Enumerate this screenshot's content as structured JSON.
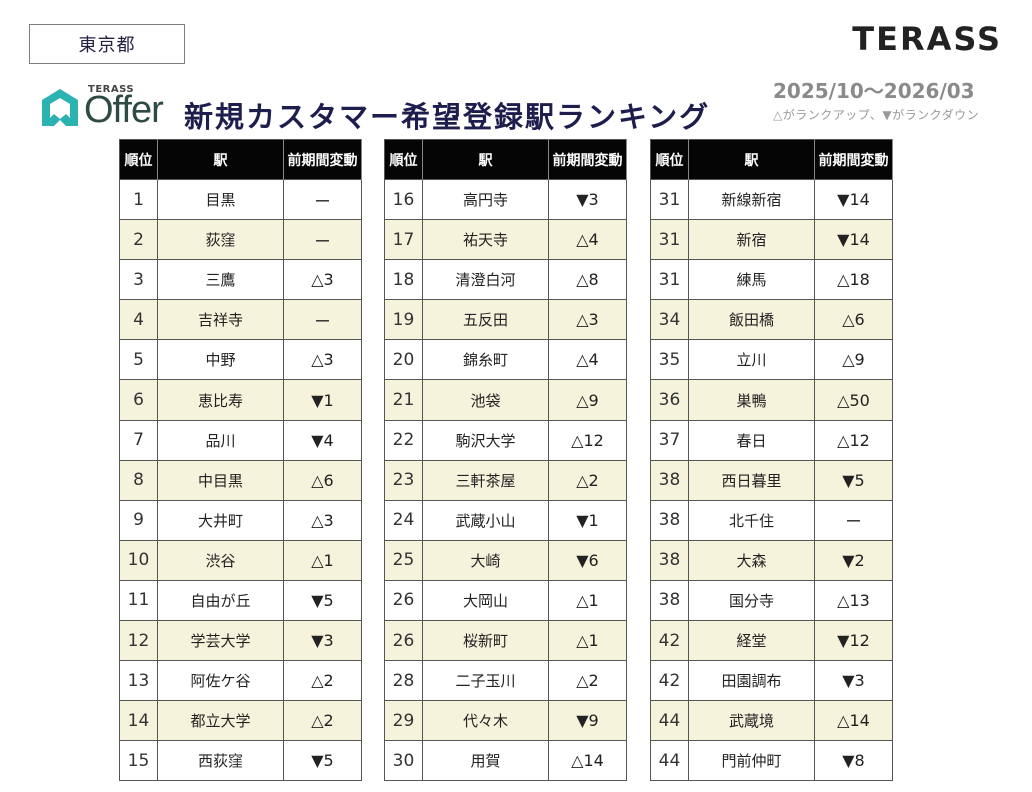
{
  "region": "東京都",
  "brand": "TERASS",
  "logo": {
    "small": "TERASS",
    "main": "Offer"
  },
  "title": "新規カスタマー希望登録駅ランキング",
  "period": "2025/10～2026/03",
  "legend_note": "△がランクアップ、▼がランクダウン",
  "colors": {
    "header_bg": "#050505",
    "alt_row": "#f6f3dc",
    "title": "#1e1e4e",
    "logo_teal": "#2bb3b1"
  },
  "headers": [
    "順位",
    "駅",
    "前期間変動"
  ],
  "tables": [
    {
      "rows": [
        {
          "rank": "1",
          "station": "目黒",
          "change": "ー"
        },
        {
          "rank": "2",
          "station": "荻窪",
          "change": "ー"
        },
        {
          "rank": "3",
          "station": "三鷹",
          "change": "△3"
        },
        {
          "rank": "4",
          "station": "吉祥寺",
          "change": "ー"
        },
        {
          "rank": "5",
          "station": "中野",
          "change": "△3"
        },
        {
          "rank": "6",
          "station": "恵比寿",
          "change": "▼1"
        },
        {
          "rank": "7",
          "station": "品川",
          "change": "▼4"
        },
        {
          "rank": "8",
          "station": "中目黒",
          "change": "△6"
        },
        {
          "rank": "9",
          "station": "大井町",
          "change": "△3"
        },
        {
          "rank": "10",
          "station": "渋谷",
          "change": "△1"
        },
        {
          "rank": "11",
          "station": "自由が丘",
          "change": "▼5"
        },
        {
          "rank": "12",
          "station": "学芸大学",
          "change": "▼3"
        },
        {
          "rank": "13",
          "station": "阿佐ケ谷",
          "change": "△2"
        },
        {
          "rank": "14",
          "station": "都立大学",
          "change": "△2"
        },
        {
          "rank": "15",
          "station": "西荻窪",
          "change": "▼5"
        }
      ]
    },
    {
      "rows": [
        {
          "rank": "16",
          "station": "高円寺",
          "change": "▼3"
        },
        {
          "rank": "17",
          "station": "祐天寺",
          "change": "△4"
        },
        {
          "rank": "18",
          "station": "清澄白河",
          "change": "△8"
        },
        {
          "rank": "19",
          "station": "五反田",
          "change": "△3"
        },
        {
          "rank": "20",
          "station": "錦糸町",
          "change": "△4"
        },
        {
          "rank": "21",
          "station": "池袋",
          "change": "△9"
        },
        {
          "rank": "22",
          "station": "駒沢大学",
          "change": "△12"
        },
        {
          "rank": "23",
          "station": "三軒茶屋",
          "change": "△2"
        },
        {
          "rank": "24",
          "station": "武蔵小山",
          "change": "▼1"
        },
        {
          "rank": "25",
          "station": "大崎",
          "change": "▼6"
        },
        {
          "rank": "26",
          "station": "大岡山",
          "change": "△1"
        },
        {
          "rank": "26",
          "station": "桜新町",
          "change": "△1"
        },
        {
          "rank": "28",
          "station": "二子玉川",
          "change": "△2"
        },
        {
          "rank": "29",
          "station": "代々木",
          "change": "▼9"
        },
        {
          "rank": "30",
          "station": "用賀",
          "change": "△14"
        }
      ]
    },
    {
      "rows": [
        {
          "rank": "31",
          "station": "新線新宿",
          "change": "▼14"
        },
        {
          "rank": "31",
          "station": "新宿",
          "change": "▼14"
        },
        {
          "rank": "31",
          "station": "練馬",
          "change": "△18"
        },
        {
          "rank": "34",
          "station": "飯田橋",
          "change": "△6"
        },
        {
          "rank": "35",
          "station": "立川",
          "change": "△9"
        },
        {
          "rank": "36",
          "station": "巣鴨",
          "change": "△50"
        },
        {
          "rank": "37",
          "station": "春日",
          "change": "△12"
        },
        {
          "rank": "38",
          "station": "西日暮里",
          "change": "▼5"
        },
        {
          "rank": "38",
          "station": "北千住",
          "change": "ー"
        },
        {
          "rank": "38",
          "station": "大森",
          "change": "▼2"
        },
        {
          "rank": "38",
          "station": "国分寺",
          "change": "△13"
        },
        {
          "rank": "42",
          "station": "経堂",
          "change": "▼12"
        },
        {
          "rank": "42",
          "station": "田園調布",
          "change": "▼3"
        },
        {
          "rank": "44",
          "station": "武蔵境",
          "change": "△14"
        },
        {
          "rank": "44",
          "station": "門前仲町",
          "change": "▼8"
        }
      ]
    }
  ]
}
